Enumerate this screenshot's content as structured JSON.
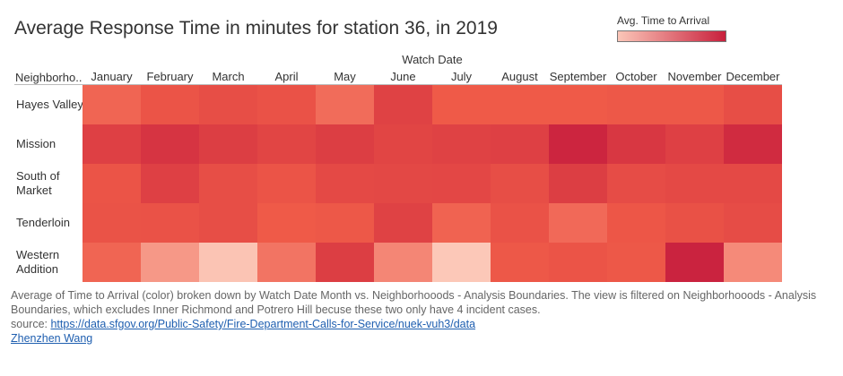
{
  "header": {
    "title": "Average Response Time in minutes for station 36, in 2019"
  },
  "legend": {
    "title": "Avg. Time to Arrival",
    "color_low": "#fbc6b8",
    "color_high": "#c8203c"
  },
  "chart_data": {
    "type": "heatmap",
    "title": "Average Response Time in minutes for station 36, in 2019",
    "xlabel": "Watch Date",
    "ylabel": "Neighborho..",
    "x": [
      "January",
      "February",
      "March",
      "April",
      "May",
      "June",
      "July",
      "August",
      "September",
      "October",
      "November",
      "December"
    ],
    "y": [
      "Hayes Valley",
      "Mission",
      "South of Market",
      "Tenderloin",
      "Western Addition"
    ],
    "values": [
      [
        0.45,
        0.55,
        0.6,
        0.57,
        0.42,
        0.7,
        0.5,
        0.5,
        0.5,
        0.52,
        0.52,
        0.6
      ],
      [
        0.72,
        0.82,
        0.74,
        0.68,
        0.74,
        0.68,
        0.7,
        0.72,
        0.95,
        0.8,
        0.72,
        0.9
      ],
      [
        0.55,
        0.72,
        0.6,
        0.55,
        0.64,
        0.65,
        0.66,
        0.6,
        0.74,
        0.62,
        0.64,
        0.64
      ],
      [
        0.56,
        0.57,
        0.6,
        0.5,
        0.52,
        0.7,
        0.46,
        0.57,
        0.43,
        0.53,
        0.58,
        0.62
      ],
      [
        0.45,
        0.22,
        0.02,
        0.38,
        0.74,
        0.3,
        0.0,
        0.52,
        0.55,
        0.52,
        0.97,
        0.28
      ]
    ],
    "value_scale": "normalized 0-1 (relative color intensity; no numeric labels shown)",
    "legend_position": "top-right",
    "grid": false
  },
  "caption": {
    "text": "Average of Time to Arrival (color) broken down by Watch Date Month vs. Neighborhooods - Analysis Boundaries. The view is filtered on Neighborhooods - Analysis Boundaries, which excludes Inner Richmond and Potrero Hill becuse these two only have 4 incident cases.",
    "source_prefix": "source: ",
    "source_url": "https://data.sfgov.org/Public-Safety/Fire-Department-Calls-for-Service/nuek-vuh3/data",
    "author": "Zhenzhen Wang"
  }
}
